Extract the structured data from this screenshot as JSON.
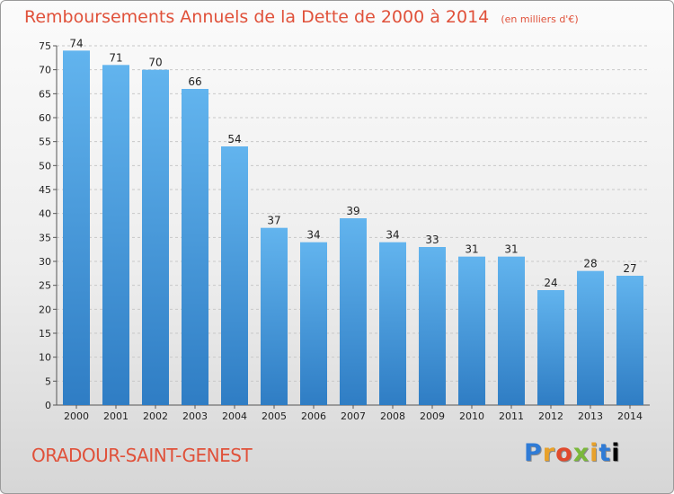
{
  "header": {
    "title": "Remboursements Annuels de la Dette de 2000 à 2014",
    "unit": "(en milliers d'€)"
  },
  "footer": {
    "commune": "ORADOUR-SAINT-GENEST",
    "logo": "Proxiti"
  },
  "colors": {
    "title": "#e0513a",
    "bar_top": "#62b4ee",
    "bar_bottom": "#2f7dc4",
    "grid": "#c8c8c8"
  },
  "chart_data": {
    "type": "bar",
    "title": "Remboursements Annuels de la Dette de 2000 à 2014",
    "xlabel": "",
    "ylabel": "",
    "categories": [
      "2000",
      "2001",
      "2002",
      "2003",
      "2004",
      "2005",
      "2006",
      "2007",
      "2008",
      "2009",
      "2010",
      "2011",
      "2012",
      "2013",
      "2014"
    ],
    "values": [
      74,
      71,
      70,
      66,
      54,
      37,
      34,
      39,
      34,
      33,
      31,
      31,
      24,
      28,
      27
    ],
    "ylim": [
      0,
      75
    ],
    "yticks": [
      0,
      5,
      10,
      15,
      20,
      25,
      30,
      35,
      40,
      45,
      50,
      55,
      60,
      65,
      70,
      75
    ],
    "grid": true,
    "legend": "none"
  }
}
